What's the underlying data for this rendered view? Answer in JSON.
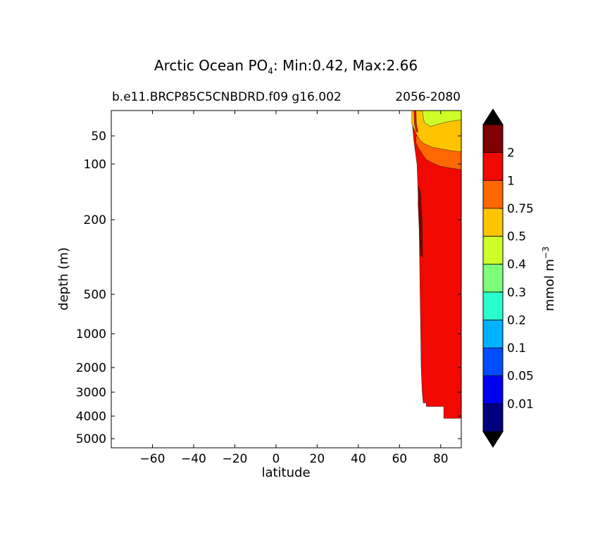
{
  "chart_data": {
    "type": "contourf",
    "title_prefix": "Arctic Ocean PO",
    "title_subscript": "4",
    "title_suffix": ": Min:0.42, Max:2.66",
    "subtitle_left": "b.e11.BRCP85C5CNBDRD.f09 g16.002",
    "subtitle_right": "2056-2080",
    "xlabel": "latitude",
    "ylabel": "depth (m)",
    "xlim": [
      -80,
      90
    ],
    "ylim": [
      5000,
      20
    ],
    "yscale": "log-like (depth)",
    "xticks": [
      {
        "value": -60,
        "label": "−60"
      },
      {
        "value": -40,
        "label": "−40"
      },
      {
        "value": -20,
        "label": "−20"
      },
      {
        "value": 0,
        "label": "0"
      },
      {
        "value": 20,
        "label": "20"
      },
      {
        "value": 40,
        "label": "40"
      },
      {
        "value": 60,
        "label": "60"
      },
      {
        "value": 80,
        "label": "80"
      }
    ],
    "yticks": [
      {
        "value": 50,
        "label": "50"
      },
      {
        "value": 100,
        "label": "100"
      },
      {
        "value": 200,
        "label": "200"
      },
      {
        "value": 500,
        "label": "500"
      },
      {
        "value": 1000,
        "label": "1000"
      },
      {
        "value": 2000,
        "label": "2000"
      },
      {
        "value": 3000,
        "label": "3000"
      },
      {
        "value": 4000,
        "label": "4000"
      },
      {
        "value": 5000,
        "label": "5000"
      }
    ],
    "colorbar": {
      "label": "mmol m",
      "label_superscript": "−3",
      "levels": [
        "0.01",
        "0.05",
        "0.1",
        "0.2",
        "0.3",
        "0.4",
        "0.5",
        "0.75",
        "1",
        "2"
      ],
      "colors": [
        "#00007f",
        "#0000f1",
        "#004dff",
        "#00b1ff",
        "#29ffce",
        "#7dff7a",
        "#ceff29",
        "#ffc400",
        "#ff6800",
        "#f10800",
        "#7f0000"
      ],
      "under_color": "#000000",
      "over_color": "#000000",
      "extend": "both"
    },
    "fields": [
      {
        "name": "dark-red patch (>2)",
        "color_index": 10,
        "lat": [
          69,
          71
        ],
        "depth": [
          140,
          350
        ]
      },
      {
        "name": "red region (1-2)",
        "color_index": 9,
        "lat": [
          66,
          90
        ],
        "depth": [
          20,
          4100
        ]
      },
      {
        "name": "orange band (0.75-1)",
        "color_index": 8,
        "lat": [
          68,
          90
        ],
        "depth": [
          55,
          110
        ]
      },
      {
        "name": "gold band (0.5-0.75)",
        "color_index": 7,
        "lat": [
          66,
          90
        ],
        "depth": [
          20,
          75
        ]
      },
      {
        "name": "yellow-green top (0.4-0.5)",
        "color_index": 6,
        "lat": [
          71,
          90
        ],
        "depth": [
          20,
          40
        ]
      }
    ]
  }
}
